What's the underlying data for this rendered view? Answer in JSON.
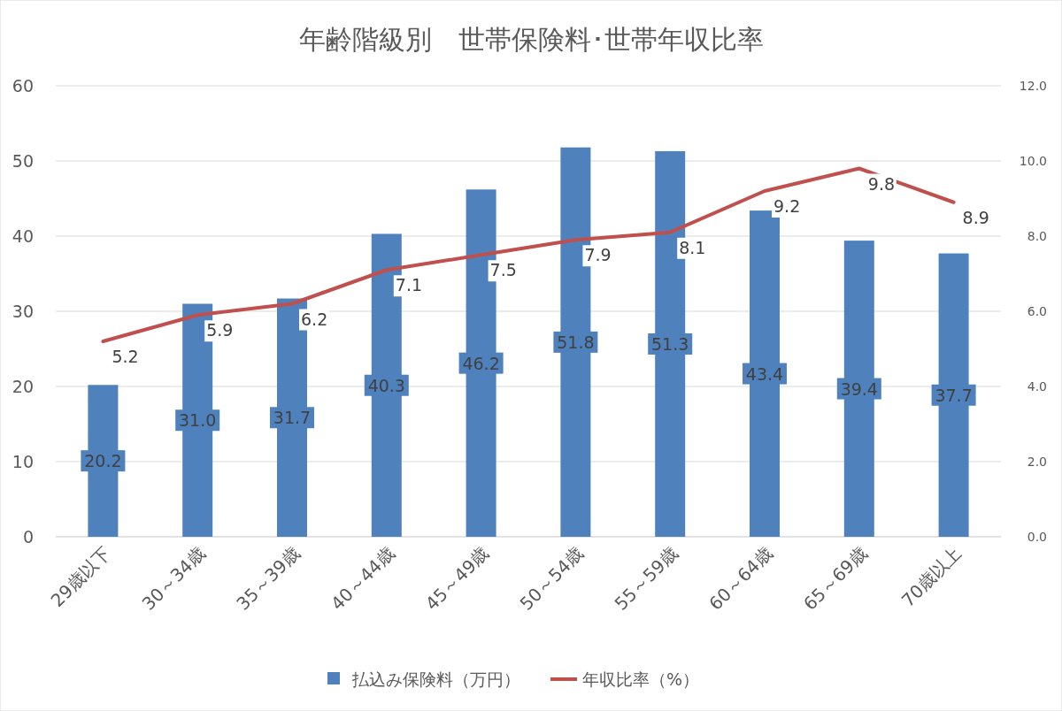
{
  "chart_data": {
    "type": "bar",
    "title": "年齢階級別　世帯保険料･世帯年収比率",
    "categories": [
      "29歳以下",
      "30～34歳",
      "35～39歳",
      "40～44歳",
      "45～49歳",
      "50～54歳",
      "55～59歳",
      "60～64歳",
      "65～69歳",
      "70歳以上"
    ],
    "series": [
      {
        "name": "払込み保険料（万円）",
        "color": "#4f81bd",
        "values": [
          20.2,
          31.0,
          31.7,
          40.3,
          46.2,
          51.8,
          51.3,
          43.4,
          39.4,
          37.7
        ],
        "value_labels": [
          "20.2",
          "31.0",
          "31.7",
          "40.3",
          "46.2",
          "51.8",
          "51.3",
          "43.4",
          "39.4",
          "37.7"
        ]
      },
      {
        "name": "年収比率（%）",
        "type": "line",
        "axis": "y2",
        "color": "#c0504d",
        "values": [
          5.2,
          5.9,
          6.2,
          7.1,
          7.5,
          7.9,
          8.1,
          9.2,
          9.8,
          8.9
        ],
        "value_labels": [
          "5.2",
          "5.9",
          "6.2",
          "7.1",
          "7.5",
          "7.9",
          "8.1",
          "9.2",
          "9.8",
          "8.9"
        ]
      }
    ],
    "ylim": [
      0,
      60
    ],
    "yticks": [
      0,
      10,
      20,
      30,
      40,
      50,
      60
    ],
    "y2lim": [
      0,
      12
    ],
    "y2ticks": [
      {
        "value": 0,
        "label": "0.0"
      },
      {
        "value": 2,
        "label": "2.0"
      },
      {
        "value": 4,
        "label": "4.0"
      },
      {
        "value": 6,
        "label": "6.0"
      },
      {
        "value": 8,
        "label": "8.0"
      },
      {
        "value": 10,
        "label": "10.0"
      },
      {
        "value": 12,
        "label": "12.0"
      }
    ],
    "grid": "y",
    "legend": "bottom"
  }
}
